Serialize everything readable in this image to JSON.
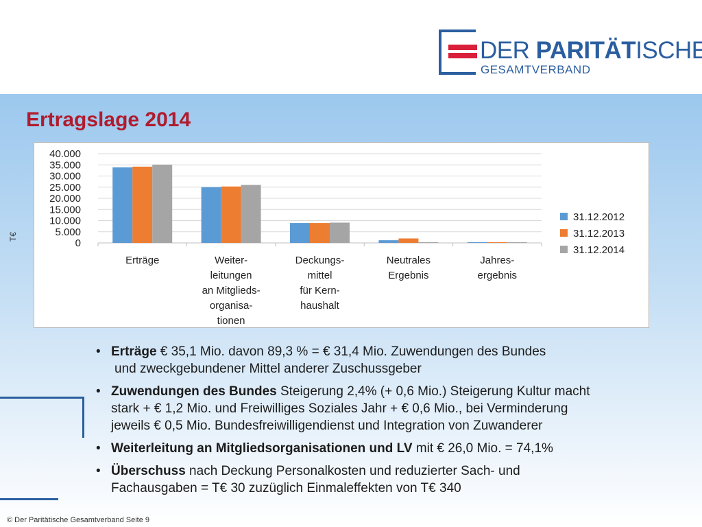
{
  "logo": {
    "line1_thin": "DER ",
    "line1_bold": "PARITÄT",
    "line1_rest": "ISCHE",
    "line2": "GESAMTVERBAND"
  },
  "title": "Ertragslage 2014",
  "y_unit": "T€",
  "chart_data": {
    "type": "bar",
    "categories": [
      [
        "Erträge"
      ],
      [
        "Weiter-",
        "leitungen",
        "an Mitglieds-",
        "organisa-",
        "tionen"
      ],
      [
        "Deckungs-",
        "mittel",
        "für Kern-",
        "haushalt"
      ],
      [
        "Neutrales",
        "Ergebnis"
      ],
      [
        "Jahres-",
        "ergebnis"
      ]
    ],
    "series": [
      {
        "name": "31.12.2012",
        "color": "#5b9bd5",
        "values": [
          33900,
          25000,
          8900,
          1200,
          300
        ]
      },
      {
        "name": "31.12.2013",
        "color": "#ed7d31",
        "values": [
          34200,
          25300,
          8900,
          2000,
          300
        ]
      },
      {
        "name": "31.12.2014",
        "color": "#a5a5a5",
        "values": [
          35100,
          26000,
          9100,
          300,
          300
        ]
      }
    ],
    "ylim": [
      0,
      40000
    ],
    "yticks": [
      "0",
      "5.000",
      "10.000",
      "15.000",
      "20.000",
      "25.000",
      "30.000",
      "35.000",
      "40.000"
    ],
    "grid": true,
    "legend": "right"
  },
  "bullets": [
    {
      "bold": "Erträge",
      "text": " € 35,1 Mio. davon 89,3 % = € 31,4 Mio. Zuwendungen des Bundes",
      "cont": "und zweckgebundener Mittel anderer Zuschussgeber"
    },
    {
      "bold": "Zuwendungen des Bundes",
      "text": " Steigerung 2,4% (+ 0,6 Mio.) Steigerung Kultur macht",
      "cont": "stark + € 1,2 Mio. und Freiwilliges Soziales Jahr + € 0,6 Mio., bei Verminderung",
      "cont2": "jeweils € 0,5 Mio. Bundesfreiwilligendienst und Integration von Zuwanderer"
    },
    {
      "bold": "Weiterleitung an Mitgliedsorganisationen und LV",
      "text": " mit € 26,0 Mio. = 74,1%"
    },
    {
      "bold": "Überschuss",
      "text": " nach Deckung Personalkosten und reduzierter Sach- und",
      "cont": "Fachausgaben = T€ 30 zuzüglich Einmaleffekten von T€ 340"
    }
  ],
  "footer": "©  Der Paritätische Gesamtverband Seite 9"
}
